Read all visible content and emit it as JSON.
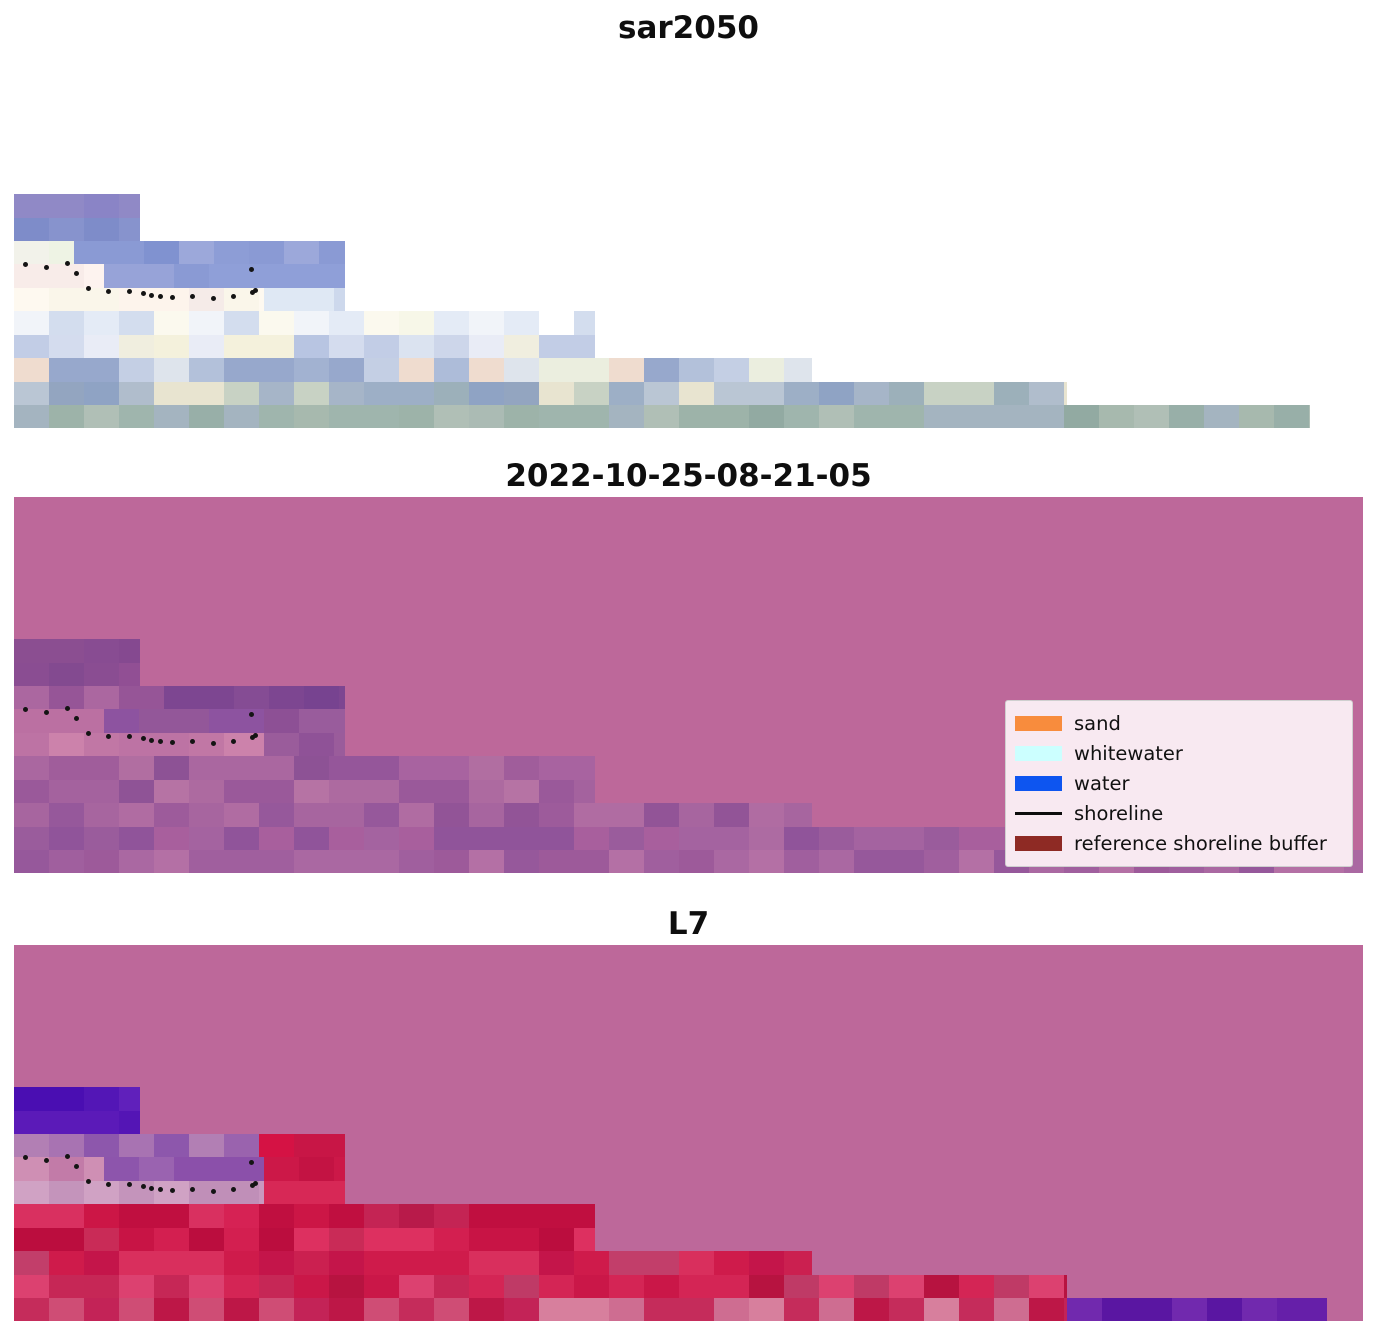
{
  "panels": [
    {
      "title": "sar2050",
      "bg": "#ffffff",
      "rows": [
        [
          [
            126,
            [
              "#8a84c6",
              "#9089c6",
              "#8083c4",
              "#938cc8"
            ]
          ]
        ],
        [
          [
            126,
            [
              "#7e8cc9",
              "#8793cd",
              "#7788c6"
            ]
          ]
        ],
        [
          [
            60,
            [
              "#eef3e4",
              "#f2f2ea"
            ]
          ],
          [
            271,
            [
              "#8a9ad4",
              "#97a3d8",
              "#8092d0",
              "#9ca8da",
              "#8d9dd6"
            ]
          ]
        ],
        [
          [
            90,
            [
              "#f6efe4",
              "#fdf3ef",
              "#f8ece9"
            ]
          ],
          [
            241,
            [
              "#8a9ad4",
              "#97a3d8",
              "#aab4de",
              "#8f9fd8"
            ]
          ]
        ],
        [
          [
            250,
            [
              "#fdf4ec",
              "#fef9f0",
              "#eef0f4",
              "#f5ebe8",
              "#faf6ea"
            ]
          ],
          [
            81,
            [
              "#dfe8f4",
              "#cdd8ec"
            ]
          ]
        ],
        [
          [
            581,
            [
              "#ffffff",
              "#f1f4f9",
              "#e4ebf6",
              "#d3ddee",
              "#fbf9ee",
              "#e9eef7",
              "#dce6f2",
              "#f7f7e8"
            ]
          ]
        ],
        [
          [
            581,
            [
              "#c2cde6",
              "#a9b8dc",
              "#d4dcee",
              "#e9ecf6",
              "#f4f1dc",
              "#b8c5e2",
              "#dbe3f0",
              "#f0eedf",
              "#cdd6ea"
            ]
          ]
        ],
        [
          [
            798,
            [
              "#adbcd9",
              "#97a8cc",
              "#c4cfe4",
              "#d9dfe9",
              "#ebeedf",
              "#b3c1da",
              "#a2b2d1",
              "#efdccf",
              "#dee4ec"
            ]
          ]
        ],
        [
          [
            1053,
            [
              "#93a5c0",
              "#a6b5c8",
              "#9cb0ba",
              "#b0bdcc",
              "#c8d2c4",
              "#9dafc6",
              "#e8e4d0",
              "#8fa3c4",
              "#bac6d4"
            ]
          ]
        ],
        [
          [
            1296,
            [
              "#9db3a9",
              "#a7b9ae",
              "#92aaa2",
              "#abbbb4",
              "#a4b4c0",
              "#98afa8",
              "#b0bfb6",
              "#9fb5ad"
            ]
          ]
        ]
      ]
    },
    {
      "title": "2022-10-25-08-21-05",
      "bg": "#bd689a",
      "rows": [
        [
          [
            126,
            [
              "#8b4e91",
              "#854990",
              "#91548f",
              "#884c92"
            ]
          ]
        ],
        [
          [
            126,
            [
              "#8a4d92",
              "#914f94",
              "#834a90"
            ]
          ]
        ],
        [
          [
            150,
            [
              "#a25f9e",
              "#965597",
              "#ab67a0"
            ]
          ],
          [
            181,
            [
              "#7d4691",
              "#854c94",
              "#774390"
            ]
          ]
        ],
        [
          [
            90,
            [
              "#c478a6",
              "#bb70a2"
            ]
          ],
          [
            160,
            [
              "#8a4e96",
              "#935799",
              "#814792",
              "#8d53a0"
            ]
          ],
          [
            81,
            [
              "#8d5095",
              "#995c9c"
            ]
          ]
        ],
        [
          [
            250,
            [
              "#c67ba8",
              "#bd73a4",
              "#cc82ab",
              "#c177a5"
            ]
          ],
          [
            81,
            [
              "#9a5c9b",
              "#8f5297"
            ]
          ]
        ],
        [
          [
            581,
            [
              "#a05d9b",
              "#aa67a0",
              "#95569a",
              "#b16ea1",
              "#8d5295",
              "#a863a0"
            ]
          ]
        ],
        [
          [
            581,
            [
              "#9a599a",
              "#a4629e",
              "#8f5396",
              "#ad6aa0",
              "#b673a4"
            ]
          ]
        ],
        [
          [
            798,
            [
              "#9d5b9b",
              "#a7659f",
              "#925497",
              "#b06ca2",
              "#96589b"
            ]
          ]
        ],
        [
          [
            1053,
            [
              "#9a5c9c",
              "#a463a0",
              "#90549a",
              "#ad6ba2",
              "#a85f9d"
            ]
          ]
        ],
        [
          [
            1349,
            [
              "#a05f9e",
              "#aa68a2",
              "#96589b",
              "#b470a5",
              "#9d5a9a"
            ]
          ]
        ]
      ]
    },
    {
      "title": "L7",
      "bg": "#bd689a",
      "rows": [
        [
          [
            126,
            [
              "#5316b6",
              "#4a0eb2",
              "#6020bb",
              "#5919b4"
            ]
          ]
        ],
        [
          [
            126,
            [
              "#4c10b4",
              "#5b1ab8",
              "#5415b5"
            ]
          ]
        ],
        [
          [
            245,
            [
              "#a873b2",
              "#9a63ae",
              "#8d57ac",
              "#b27fb4"
            ]
          ],
          [
            86,
            [
              "#d51244",
              "#c81646"
            ]
          ]
        ],
        [
          [
            90,
            [
              "#c27ba8",
              "#cf8fb4"
            ]
          ],
          [
            160,
            [
              "#8b50aa",
              "#9a63b0",
              "#7c3ea4",
              "#8d55ac"
            ]
          ],
          [
            81,
            [
              "#cc1848",
              "#c31343"
            ]
          ]
        ],
        [
          [
            250,
            [
              "#c998bf",
              "#c08fb8",
              "#d0a2c4",
              "#c494bb"
            ]
          ],
          [
            81,
            [
              "#cd1b4d",
              "#d72856"
            ]
          ]
        ],
        [
          [
            581,
            [
              "#cc1646",
              "#d62254",
              "#c00f40",
              "#d93060",
              "#b81a4a",
              "#c42454"
            ]
          ]
        ],
        [
          [
            581,
            [
              "#c81445",
              "#d31f50",
              "#bb0d3e",
              "#dd3060",
              "#c92b57"
            ]
          ]
        ],
        [
          [
            798,
            [
              "#cf1b4b",
              "#c4154a",
              "#d92f5d",
              "#c23e6a",
              "#cb2050"
            ]
          ]
        ],
        [
          [
            1053,
            [
              "#ca1748",
              "#d42555",
              "#bf3a66",
              "#dc4170",
              "#b71340",
              "#c62756"
            ]
          ]
        ],
        [
          [
            1053,
            [
              "#cf4d75",
              "#c32357",
              "#ce6d91",
              "#bd1747",
              "#d77f9d",
              "#c52c5b"
            ]
          ],
          [
            260,
            [
              "#661fa9",
              "#5a16a2",
              "#7129ae"
            ]
          ],
          [
            36,
            [
              "#bd689a"
            ]
          ]
        ]
      ]
    }
  ],
  "shoreline": {
    "color": "#141414",
    "arcs": [
      [
        [
          11,
          212
        ],
        [
          32,
          215
        ],
        [
          53,
          211
        ],
        [
          62,
          221
        ],
        [
          237,
          217
        ]
      ],
      [
        [
          74,
          236
        ],
        [
          94,
          239
        ],
        [
          115,
          239
        ],
        [
          129,
          241
        ],
        [
          137,
          243
        ],
        [
          146,
          244
        ],
        [
          158,
          245
        ],
        [
          178,
          244
        ],
        [
          199,
          246
        ],
        [
          219,
          244
        ],
        [
          238,
          240
        ],
        [
          241,
          238
        ]
      ]
    ]
  },
  "legend": {
    "bg": "#f8e9f1",
    "border": "#cfcfcf",
    "items": [
      {
        "label": "sand",
        "color": "#f88c3d",
        "type": "patch"
      },
      {
        "label": "whitewater",
        "color": "#ccffff",
        "type": "patch"
      },
      {
        "label": "water",
        "color": "#0d55f0",
        "type": "patch"
      },
      {
        "label": "shoreline",
        "color": "#0c0c0c",
        "type": "line"
      },
      {
        "label": "reference shoreline buffer",
        "color": "#8e2a24",
        "type": "patch"
      }
    ]
  },
  "chart_data": {
    "type": "heatmap",
    "title": "Shoreline classification comparison figure",
    "panels": [
      {
        "title": "sar2050",
        "content": "Pixelated satellite mosaic on white no-data background; staircase-shaped data extent; pale blue, cream and grey-green cells; black dotted shoreline points near the upper-left of the data region."
      },
      {
        "title": "2022-10-25-08-21-05",
        "content": "Same scene with classification overlay on magenta-pink reference shoreline buffer background; staircase region appears in muted purple tones; black dotted shoreline points; legend box in the lower right."
      },
      {
        "title": "L7",
        "content": "Same scene classified: crimson/red sand region, deep indigo water block at the upper-left of the data region, lavender whitewater cells along the shoreline dots, purple strip at the bottom right, magenta-pink buffer background."
      }
    ],
    "legend_entries": [
      "sand",
      "whitewater",
      "water",
      "shoreline",
      "reference shoreline buffer"
    ],
    "legend_position": "lower right of middle panel",
    "grid": false
  }
}
